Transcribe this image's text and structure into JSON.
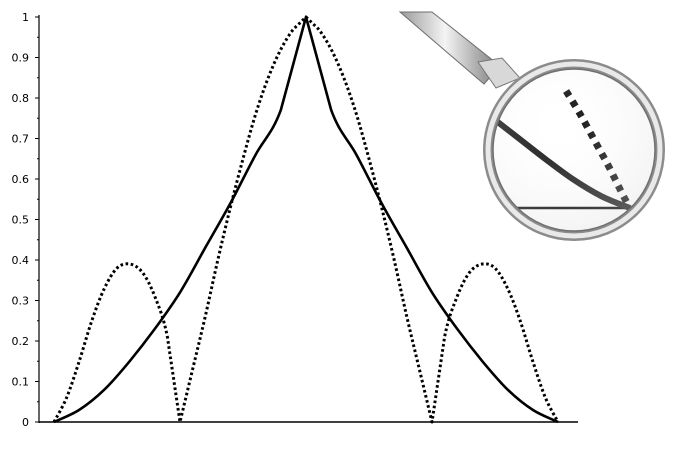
{
  "chart_data": {
    "type": "line",
    "title": "",
    "xlabel": "",
    "ylabel": "",
    "ylim": [
      0,
      1
    ],
    "xlim": [
      -1.1,
      1.6
    ],
    "y_ticks": [
      "0",
      "0.1",
      "0.2",
      "0.3",
      "0.4",
      "0.5",
      "0.6",
      "0.7",
      "0.8",
      "0.9",
      "1"
    ],
    "y_tick_values": [
      0,
      0.1,
      0.2,
      0.3,
      0.4,
      0.5,
      0.6,
      0.7,
      0.8,
      0.9,
      1
    ],
    "grid": false,
    "legend": "none",
    "series": [
      {
        "style": "solid",
        "color": "#000000",
        "x": [
          -1.0,
          -0.9,
          -0.8,
          -0.7,
          -0.6,
          -0.5,
          -0.4,
          -0.3,
          -0.2,
          -0.1,
          0.0,
          0.1,
          0.2,
          0.3,
          0.4,
          0.5,
          0.6,
          0.7,
          0.8,
          0.9,
          1.0
        ],
        "values": [
          0.0,
          0.03,
          0.08,
          0.15,
          0.23,
          0.32,
          0.43,
          0.54,
          0.66,
          0.77,
          1.0,
          0.77,
          0.66,
          0.54,
          0.43,
          0.32,
          0.23,
          0.15,
          0.08,
          0.03,
          0.0
        ]
      },
      {
        "style": "dotted",
        "color": "#000000",
        "x": [
          -1.0,
          -0.95,
          -0.9,
          -0.85,
          -0.8,
          -0.75,
          -0.7,
          -0.65,
          -0.6,
          -0.55,
          -0.5,
          -0.45,
          -0.4,
          -0.35,
          -0.3,
          -0.25,
          -0.2,
          -0.15,
          -0.1,
          -0.05,
          0.0,
          0.05,
          0.1,
          0.15,
          0.2,
          0.25,
          0.3,
          0.35,
          0.4,
          0.45,
          0.5,
          0.55,
          0.6,
          0.65,
          0.7,
          0.75,
          0.8,
          0.85,
          0.9,
          0.95,
          1.0
        ],
        "values": [
          0.0,
          0.06,
          0.15,
          0.25,
          0.33,
          0.38,
          0.39,
          0.37,
          0.31,
          0.21,
          0.0,
          0.13,
          0.26,
          0.4,
          0.53,
          0.65,
          0.76,
          0.85,
          0.92,
          0.97,
          1.0,
          0.97,
          0.92,
          0.85,
          0.76,
          0.65,
          0.53,
          0.4,
          0.26,
          0.13,
          0.0,
          0.21,
          0.31,
          0.37,
          0.39,
          0.38,
          0.33,
          0.25,
          0.15,
          0.06,
          0.0
        ]
      }
    ],
    "inset": {
      "type": "magnifier",
      "description_visible": false,
      "series": [
        {
          "style": "solid",
          "x": [
            0.0,
            0.2,
            0.4,
            0.6,
            0.8,
            1.0
          ],
          "values": [
            0.72,
            0.55,
            0.38,
            0.22,
            0.09,
            0.0
          ]
        },
        {
          "style": "dotted",
          "x": [
            0.55,
            0.65,
            0.75,
            0.85,
            0.95,
            1.0
          ],
          "values": [
            0.9,
            0.72,
            0.52,
            0.32,
            0.1,
            0.0
          ]
        }
      ]
    }
  }
}
